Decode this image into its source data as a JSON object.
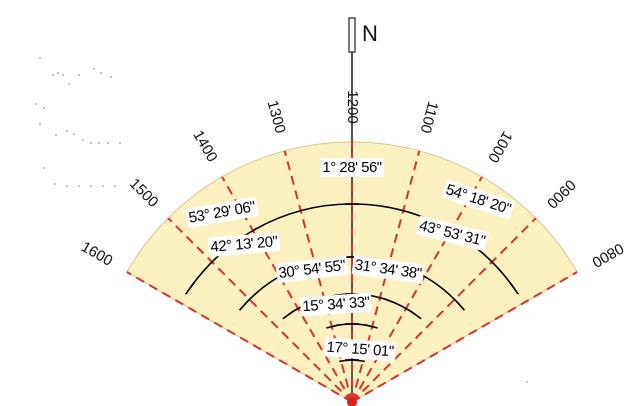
{
  "north": {
    "label": "N"
  },
  "headings": [
    {
      "label": "0800",
      "angle": 60
    },
    {
      "label": "0900",
      "angle": 45
    },
    {
      "label": "1000",
      "angle": 30
    },
    {
      "label": "1100",
      "angle": 15
    },
    {
      "label": "1200",
      "angle": 0
    },
    {
      "label": "1300",
      "angle": -15
    },
    {
      "label": "1400",
      "angle": -30
    },
    {
      "label": "1500",
      "angle": -45
    },
    {
      "label": "1600",
      "angle": -60
    }
  ],
  "bearings": [
    {
      "text": "1° 28' 56\""
    },
    {
      "text": "54° 18' 20\""
    },
    {
      "text": "53° 29' 06\""
    },
    {
      "text": "42° 13' 20\""
    },
    {
      "text": "43° 53' 31\""
    },
    {
      "text": "30° 54' 55\""
    },
    {
      "text": "31° 34' 38\""
    },
    {
      "text": "15° 34' 33\""
    },
    {
      "text": "17° 15' 01\""
    }
  ],
  "colors": {
    "sector_fill": "#fbf0c0",
    "ray": "#d8342c",
    "arc": "#000000",
    "origin": "#e0201c"
  }
}
